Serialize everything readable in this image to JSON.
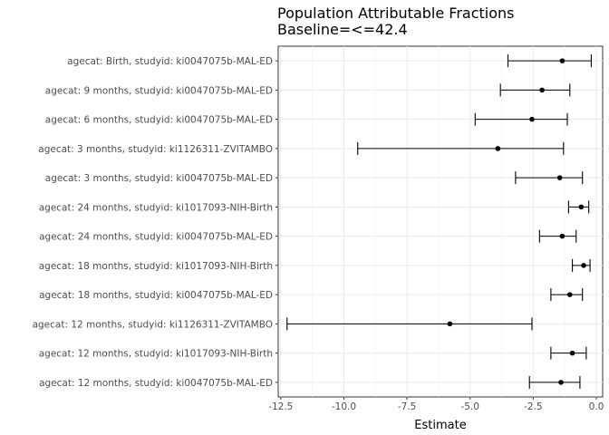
{
  "chart_data": {
    "type": "forest",
    "title": "Population Attributable Fractions",
    "subtitle": "Baseline=<=42.4",
    "xlabel": "Estimate",
    "ylabel": "",
    "xlim": [
      -12.6,
      0.25
    ],
    "xticks": [
      -12.5,
      -10.0,
      -7.5,
      -5.0,
      -2.5,
      0.0
    ],
    "xtick_labels": [
      "-12.5",
      "-10.0",
      "-7.5",
      "-5.0",
      "-2.5",
      "0.0"
    ],
    "grid": true,
    "categories": [
      "agecat: Birth, studyid: ki0047075b-MAL-ED",
      "agecat: 9 months, studyid: ki0047075b-MAL-ED",
      "agecat: 6 months, studyid: ki0047075b-MAL-ED",
      "agecat: 3 months, studyid: ki1126311-ZVITAMBO",
      "agecat: 3 months, studyid: ki0047075b-MAL-ED",
      "agecat: 24 months, studyid: ki1017093-NIH-Birth",
      "agecat: 24 months, studyid: ki0047075b-MAL-ED",
      "agecat: 18 months, studyid: ki1017093-NIH-Birth",
      "agecat: 18 months, studyid: ki0047075b-MAL-ED",
      "agecat: 12 months, studyid: ki1126311-ZVITAMBO",
      "agecat: 12 months, studyid: ki1017093-NIH-Birth",
      "agecat: 12 months, studyid: ki0047075b-MAL-ED"
    ],
    "estimates": [
      -1.35,
      -2.15,
      -2.55,
      -3.9,
      -1.45,
      -0.6,
      -1.35,
      -0.5,
      -1.05,
      -5.8,
      -0.95,
      -1.4
    ],
    "ci_lower": [
      -3.5,
      -3.8,
      -4.8,
      -9.45,
      -3.2,
      -1.1,
      -2.25,
      -0.95,
      -1.8,
      -12.25,
      -1.8,
      -2.65
    ],
    "ci_upper": [
      -0.2,
      -1.05,
      -1.15,
      -1.3,
      -0.55,
      -0.3,
      -0.8,
      -0.25,
      -0.55,
      -2.55,
      -0.4,
      -0.65
    ]
  }
}
